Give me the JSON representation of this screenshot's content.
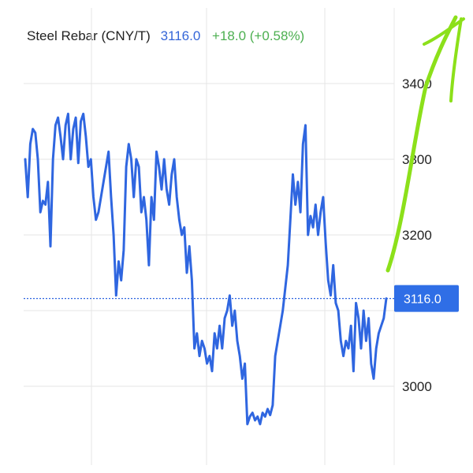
{
  "header": {
    "symbol": "Steel Rebar (CNY/T)",
    "price": "3116.0",
    "change": "+18.0 (+0.58%)"
  },
  "colors": {
    "line": "#2f66e0",
    "price_text": "#3566d8",
    "change_text": "#4caf50",
    "grid": "#e3e3e3",
    "annotation": "#8ce01a",
    "tag_bg": "#2f6ee6"
  },
  "chart_data": {
    "type": "line",
    "title": "Steel Rebar (CNY/T)",
    "ylim": [
      2960,
      3460
    ],
    "y_ticks": [
      "3400",
      "3300",
      "3200",
      "3000"
    ],
    "last_value_label": "3116.0",
    "last_value": 3116,
    "grid": true,
    "series": [
      {
        "name": "Steel Rebar (CNY/T)",
        "values": [
          3300,
          3250,
          3320,
          3340,
          3335,
          3300,
          3230,
          3245,
          3240,
          3270,
          3185,
          3300,
          3345,
          3355,
          3330,
          3300,
          3345,
          3360,
          3300,
          3340,
          3355,
          3295,
          3350,
          3360,
          3330,
          3290,
          3300,
          3250,
          3220,
          3230,
          3250,
          3270,
          3290,
          3310,
          3250,
          3200,
          3120,
          3165,
          3140,
          3180,
          3290,
          3320,
          3300,
          3250,
          3300,
          3290,
          3230,
          3250,
          3220,
          3160,
          3250,
          3220,
          3310,
          3290,
          3260,
          3300,
          3260,
          3240,
          3280,
          3300,
          3250,
          3220,
          3200,
          3210,
          3150,
          3185,
          3140,
          3050,
          3070,
          3040,
          3060,
          3050,
          3030,
          3040,
          3020,
          3070,
          3050,
          3080,
          3050,
          3090,
          3100,
          3120,
          3080,
          3100,
          3060,
          3040,
          3010,
          3030,
          2950,
          2960,
          2965,
          2955,
          2960,
          2950,
          2965,
          2960,
          2970,
          2962,
          2975,
          3040,
          3060,
          3080,
          3100,
          3130,
          3160,
          3220,
          3280,
          3240,
          3270,
          3230,
          3320,
          3345,
          3200,
          3225,
          3210,
          3240,
          3200,
          3230,
          3250,
          3190,
          3140,
          3120,
          3160,
          3110,
          3100,
          3060,
          3040,
          3060,
          3050,
          3080,
          3020,
          3110,
          3090,
          3050,
          3100,
          3060,
          3090,
          3030,
          3010,
          3050,
          3070,
          3080,
          3090,
          3116
        ]
      }
    ]
  }
}
